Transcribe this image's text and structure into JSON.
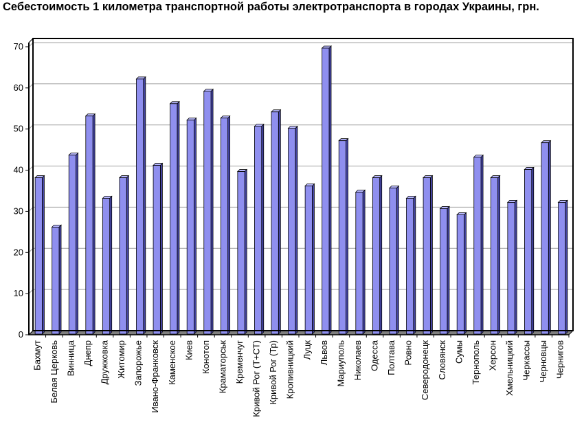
{
  "chart_data": {
    "type": "bar",
    "title": "Себестоимость 1 километра транспортной работы электротранспорта в городах Украины, грн.",
    "xlabel": "",
    "ylabel": "",
    "ylim": [
      0,
      70
    ],
    "yticks": [
      "0",
      "10",
      "20",
      "30",
      "40",
      "50",
      "60",
      "70"
    ],
    "grid": true,
    "legend": "none",
    "bar_color": "#8f8fef",
    "categories": [
      "Бахмут",
      "Белая Церковь",
      "Винница",
      "Днепр",
      "Дружковка",
      "Житомир",
      "Запорожье",
      "Ивано-Франковск",
      "Каменское",
      "Киев",
      "Конотоп",
      "Краматорськ",
      "Кременчуг",
      "Кривой Рог (Т+СТ)",
      "Кривой Рог (Тр)",
      "Кропивницкий",
      "Луцк",
      "Львов",
      "Мариуполь",
      "Николаев",
      "Одесса",
      "Полтава",
      "Ровно",
      "Северодонецк",
      "Словянск",
      "Сумы",
      "Тернополь",
      "Херсон",
      "Хмельницкий",
      "Черкассы",
      "Черновцы",
      "Чернигов"
    ],
    "values": [
      38,
      26,
      43.5,
      53,
      33,
      38,
      62,
      41,
      56,
      52,
      59,
      52.5,
      39.5,
      50.5,
      54,
      50,
      36,
      69.5,
      47,
      34.5,
      38,
      35.5,
      33,
      38,
      30.5,
      29,
      43,
      38,
      32,
      40,
      46.5,
      32
    ]
  }
}
